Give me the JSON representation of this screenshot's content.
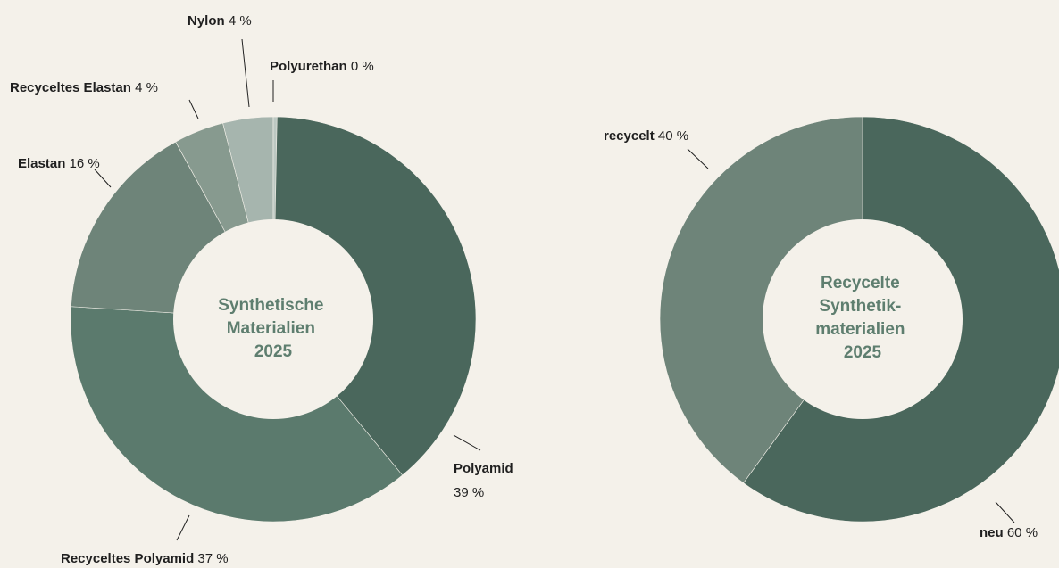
{
  "chart_data": [
    {
      "type": "pie",
      "center_label": [
        "Synthetische",
        "Materialien",
        "2025"
      ],
      "unit": "%",
      "slices": [
        {
          "name": "Polyamid",
          "value": 39,
          "color": "#4a675c"
        },
        {
          "name": "Recyceltes Polyamid",
          "value": 37,
          "color": "#5b7a6d"
        },
        {
          "name": "Elastan",
          "value": 16,
          "color": "#6e8479"
        },
        {
          "name": "Recyceltes Elastan",
          "value": 4,
          "color": "#879a8f"
        },
        {
          "name": "Nylon",
          "value": 4,
          "color": "#a6b5ae"
        },
        {
          "name": "Polyurethan",
          "value": 0,
          "color": "#bcc8c2"
        }
      ]
    },
    {
      "type": "pie",
      "center_label": [
        "Recycelte",
        "Synthetik-",
        "materialien",
        "2025"
      ],
      "unit": "%",
      "slices": [
        {
          "name": "neu",
          "value": 60,
          "color": "#4a675c"
        },
        {
          "name": "recycelt",
          "value": 40,
          "color": "#6e8479"
        }
      ]
    }
  ]
}
